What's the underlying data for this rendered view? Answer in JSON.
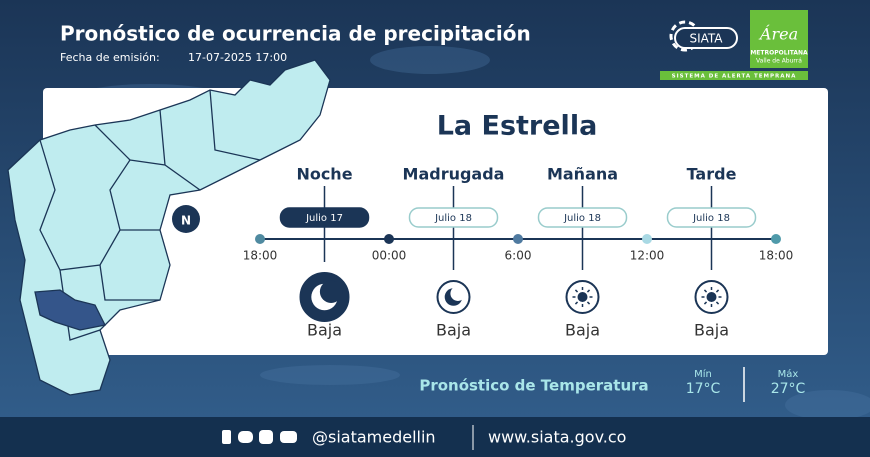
{
  "header": {
    "title": "Pronóstico de ocurrencia de precipitación",
    "issued_label": "Fecha de emisión:",
    "issued": "17-07-2025 17:00"
  },
  "logos": {
    "siata": "SIATA",
    "area": "Área",
    "metro": "METROPOLITANA",
    "valle": "Valle de Aburrá",
    "system": "SISTEMA DE ALERTA TEMPRANA"
  },
  "map": {
    "north": "N"
  },
  "forecast": {
    "location": "La Estrella",
    "periods": [
      {
        "name": "Noche",
        "date": "Julio 17",
        "level": "Baja",
        "icon": "moon",
        "highlight": true
      },
      {
        "name": "Madrugada",
        "date": "Julio 18",
        "level": "Baja",
        "icon": "moon",
        "highlight": false
      },
      {
        "name": "Mañana",
        "date": "Julio 18",
        "level": "Baja",
        "icon": "sun",
        "highlight": false
      },
      {
        "name": "Tarde",
        "date": "Julio 18",
        "level": "Baja",
        "icon": "sun",
        "highlight": false
      }
    ],
    "times": [
      "18:00",
      "00:00",
      "6:00",
      "12:00",
      "18:00"
    ]
  },
  "temperature": {
    "label": "Pronóstico de Temperatura",
    "min_label": "Mín",
    "min": "17°C",
    "max_label": "Máx",
    "max": "27°C"
  },
  "footer": {
    "handle": "@siatamedellin",
    "url": "www.siata.gov.co"
  }
}
